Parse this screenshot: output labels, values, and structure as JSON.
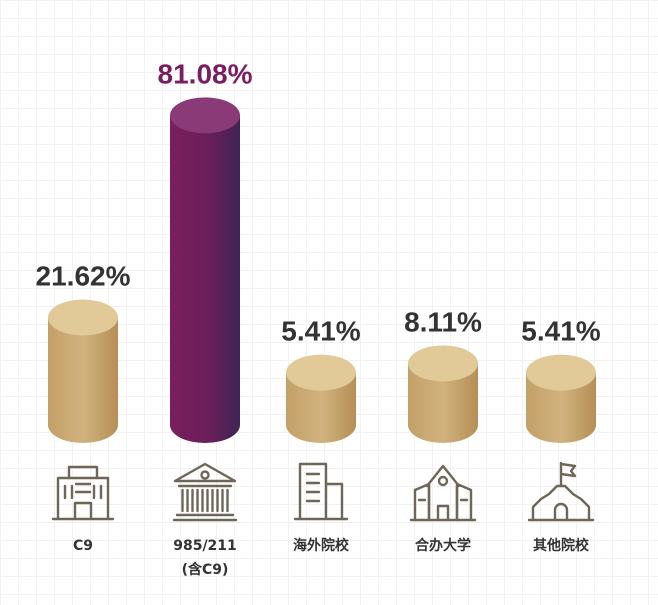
{
  "chart_data": {
    "type": "bar",
    "categories": [
      "C9",
      "985/211\n(含C9)",
      "海外院校",
      "合办大学",
      "其他院校"
    ],
    "values": [
      21.62,
      81.08,
      5.41,
      8.11,
      5.41
    ],
    "value_labels": [
      "21.62%",
      "81.08%",
      "5.41%",
      "8.11%",
      "5.41%"
    ],
    "ylim": [
      0,
      100
    ],
    "grid": false,
    "highlight_index": 1,
    "icons": [
      "office-building-icon",
      "classical-building-icon",
      "tall-building-icon",
      "school-icon",
      "castle-flag-icon"
    ]
  },
  "colors": {
    "gold_body": "#c9a873",
    "gold_top": "#e2c998",
    "purple_body": "#6e1f5c",
    "purple_top": "#8a3a76",
    "value_default": "#333333",
    "value_highlight": "#7a1e62",
    "icon_stroke": "#6e6658",
    "baseline": "#6e6658"
  }
}
